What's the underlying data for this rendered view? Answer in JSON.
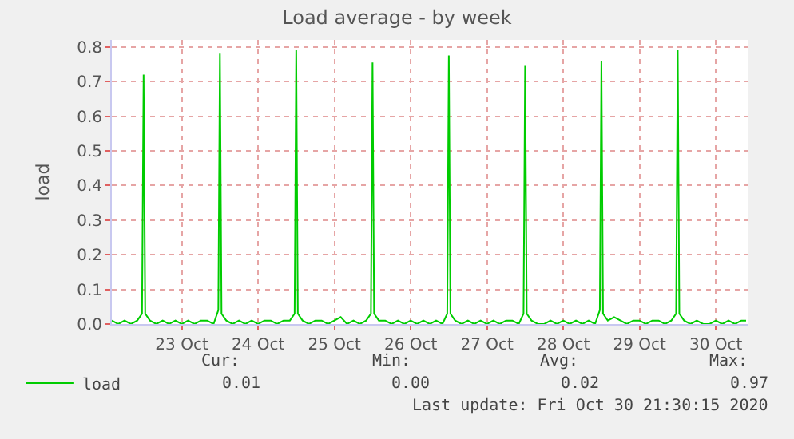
{
  "chart_data": {
    "type": "line",
    "title": "Load average - by week",
    "ylabel": "load",
    "xlim": [
      "2020-10-22T14:00",
      "2020-10-30T22:00"
    ],
    "ylim": [
      0,
      0.82
    ],
    "xticks": [
      {
        "value": "2020-10-23T12:00",
        "label": "23 Oct"
      },
      {
        "value": "2020-10-24T12:00",
        "label": "24 Oct"
      },
      {
        "value": "2020-10-25T12:00",
        "label": "25 Oct"
      },
      {
        "value": "2020-10-26T12:00",
        "label": "26 Oct"
      },
      {
        "value": "2020-10-27T12:00",
        "label": "27 Oct"
      },
      {
        "value": "2020-10-28T12:00",
        "label": "28 Oct"
      },
      {
        "value": "2020-10-29T12:00",
        "label": "29 Oct"
      },
      {
        "value": "2020-10-30T12:00",
        "label": "30 Oct"
      }
    ],
    "yticks": [
      {
        "value": 0,
        "label": "0.0"
      },
      0.1,
      0.2,
      0.3,
      0.4,
      0.5,
      0.6,
      0.7,
      0.8
    ],
    "grid": true,
    "legend": "bottom",
    "marker": "none",
    "line_style": "solid",
    "series": [
      {
        "name": "load",
        "color": "#00cc00",
        "x": [
          "2020-10-22T14:00",
          "2020-10-22T16:00",
          "2020-10-22T18:00",
          "2020-10-22T20:00",
          "2020-10-22T22:00",
          "2020-10-22T23:30",
          "2020-10-23T00:00",
          "2020-10-23T00:30",
          "2020-10-23T02:00",
          "2020-10-23T04:00",
          "2020-10-23T06:00",
          "2020-10-23T08:00",
          "2020-10-23T10:00",
          "2020-10-23T12:00",
          "2020-10-23T14:00",
          "2020-10-23T16:00",
          "2020-10-23T18:00",
          "2020-10-23T20:00",
          "2020-10-23T22:00",
          "2020-10-23T23:30",
          "2020-10-24T00:00",
          "2020-10-24T00:30",
          "2020-10-24T02:00",
          "2020-10-24T04:00",
          "2020-10-24T06:00",
          "2020-10-24T08:00",
          "2020-10-24T10:00",
          "2020-10-24T12:00",
          "2020-10-24T14:00",
          "2020-10-24T16:00",
          "2020-10-24T18:00",
          "2020-10-24T20:00",
          "2020-10-24T22:00",
          "2020-10-24T23:30",
          "2020-10-25T00:00",
          "2020-10-25T00:30",
          "2020-10-25T02:00",
          "2020-10-25T04:00",
          "2020-10-25T06:00",
          "2020-10-25T08:00",
          "2020-10-25T10:00",
          "2020-10-25T12:00",
          "2020-10-25T14:00",
          "2020-10-25T16:00",
          "2020-10-25T18:00",
          "2020-10-25T20:00",
          "2020-10-25T22:00",
          "2020-10-25T23:30",
          "2020-10-26T00:00",
          "2020-10-26T00:30",
          "2020-10-26T02:00",
          "2020-10-26T04:00",
          "2020-10-26T06:00",
          "2020-10-26T08:00",
          "2020-10-26T10:00",
          "2020-10-26T12:00",
          "2020-10-26T14:00",
          "2020-10-26T16:00",
          "2020-10-26T18:00",
          "2020-10-26T20:00",
          "2020-10-26T22:00",
          "2020-10-26T23:30",
          "2020-10-27T00:00",
          "2020-10-27T00:30",
          "2020-10-27T02:00",
          "2020-10-27T04:00",
          "2020-10-27T06:00",
          "2020-10-27T08:00",
          "2020-10-27T10:00",
          "2020-10-27T12:00",
          "2020-10-27T14:00",
          "2020-10-27T16:00",
          "2020-10-27T18:00",
          "2020-10-27T20:00",
          "2020-10-27T22:00",
          "2020-10-27T23:30",
          "2020-10-28T00:00",
          "2020-10-28T00:30",
          "2020-10-28T02:00",
          "2020-10-28T04:00",
          "2020-10-28T06:00",
          "2020-10-28T08:00",
          "2020-10-28T10:00",
          "2020-10-28T12:00",
          "2020-10-28T14:00",
          "2020-10-28T16:00",
          "2020-10-28T18:00",
          "2020-10-28T20:00",
          "2020-10-28T22:00",
          "2020-10-28T23:30",
          "2020-10-29T00:00",
          "2020-10-29T00:30",
          "2020-10-29T02:00",
          "2020-10-29T04:00",
          "2020-10-29T06:00",
          "2020-10-29T08:00",
          "2020-10-29T10:00",
          "2020-10-29T12:00",
          "2020-10-29T14:00",
          "2020-10-29T16:00",
          "2020-10-29T18:00",
          "2020-10-29T20:00",
          "2020-10-29T22:00",
          "2020-10-29T23:30",
          "2020-10-30T00:00",
          "2020-10-30T00:30",
          "2020-10-30T02:00",
          "2020-10-30T04:00",
          "2020-10-30T06:00",
          "2020-10-30T08:00",
          "2020-10-30T10:00",
          "2020-10-30T12:00",
          "2020-10-30T14:00",
          "2020-10-30T16:00",
          "2020-10-30T18:00",
          "2020-10-30T20:00",
          "2020-10-30T21:30"
        ],
        "values": [
          0.01,
          0.0,
          0.01,
          0.0,
          0.01,
          0.03,
          0.72,
          0.03,
          0.01,
          0.0,
          0.01,
          0.0,
          0.01,
          0.0,
          0.01,
          0.0,
          0.01,
          0.01,
          0.0,
          0.04,
          0.78,
          0.03,
          0.01,
          0.0,
          0.01,
          0.0,
          0.01,
          0.0,
          0.01,
          0.01,
          0.0,
          0.01,
          0.01,
          0.03,
          0.79,
          0.03,
          0.01,
          0.0,
          0.01,
          0.01,
          0.0,
          0.01,
          0.02,
          0.0,
          0.01,
          0.0,
          0.01,
          0.03,
          0.755,
          0.03,
          0.01,
          0.01,
          0.0,
          0.01,
          0.0,
          0.01,
          0.0,
          0.01,
          0.0,
          0.01,
          0.0,
          0.03,
          0.775,
          0.03,
          0.01,
          0.0,
          0.01,
          0.0,
          0.01,
          0.0,
          0.01,
          0.0,
          0.01,
          0.01,
          0.0,
          0.03,
          0.745,
          0.03,
          0.01,
          0.0,
          0.0,
          0.01,
          0.0,
          0.01,
          0.0,
          0.01,
          0.0,
          0.01,
          0.0,
          0.04,
          0.76,
          0.03,
          0.01,
          0.02,
          0.01,
          0.0,
          0.01,
          0.01,
          0.0,
          0.01,
          0.01,
          0.0,
          0.01,
          0.03,
          0.79,
          0.03,
          0.01,
          0.0,
          0.01,
          0.0,
          0.0,
          0.01,
          0.0,
          0.01,
          0.0,
          0.01,
          0.01
        ]
      }
    ],
    "annotations": [
      "Cur:",
      "Min:",
      "Avg:",
      "Max:",
      "0.01",
      "0.00",
      "0.02",
      "0.97",
      "Last update: Fri Oct 30 21:30:15 2020"
    ]
  }
}
